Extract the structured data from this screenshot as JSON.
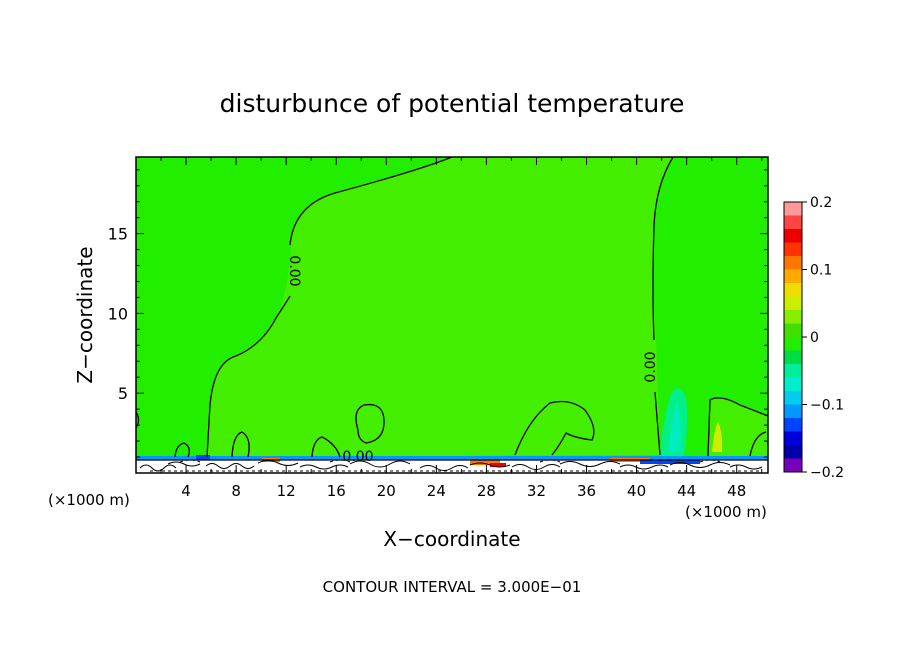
{
  "chart_data": {
    "type": "heatmap",
    "title": "disturbunce of potential temperature",
    "xlabel": "X−coordinate",
    "ylabel": "Z−coordinate",
    "x_unit_left": "(×1000 m)",
    "x_unit_right": "(×1000 m)",
    "xlim": [
      0,
      50.5
    ],
    "ylim": [
      0,
      19.8
    ],
    "xticks": [
      4,
      8,
      12,
      16,
      20,
      24,
      28,
      32,
      36,
      40,
      44,
      48
    ],
    "yticks": [
      5,
      10,
      15
    ],
    "contour_label": "0.00",
    "background_color": "#22ee00",
    "colorbar": {
      "min": -0.2,
      "max": 0.2,
      "tick_values": [
        0.2,
        0.1,
        0,
        -0.1,
        -0.2
      ],
      "tick_labels": [
        "0.2",
        "0.1",
        "0",
        "−0.1",
        "−0.2"
      ],
      "colors": [
        "#ff9999",
        "#ff4444",
        "#ee0000",
        "#ff3300",
        "#ff7700",
        "#ffaa00",
        "#eedd00",
        "#ccee00",
        "#88ee00",
        "#44dd00",
        "#22ee00",
        "#00dd44",
        "#00ee99",
        "#00eecc",
        "#00ccee",
        "#0099ff",
        "#0044ff",
        "#0000dd",
        "#0000aa",
        "#7700bb"
      ]
    },
    "contour_interval_note": "CONTOUR INTERVAL = 3.000E−01"
  }
}
